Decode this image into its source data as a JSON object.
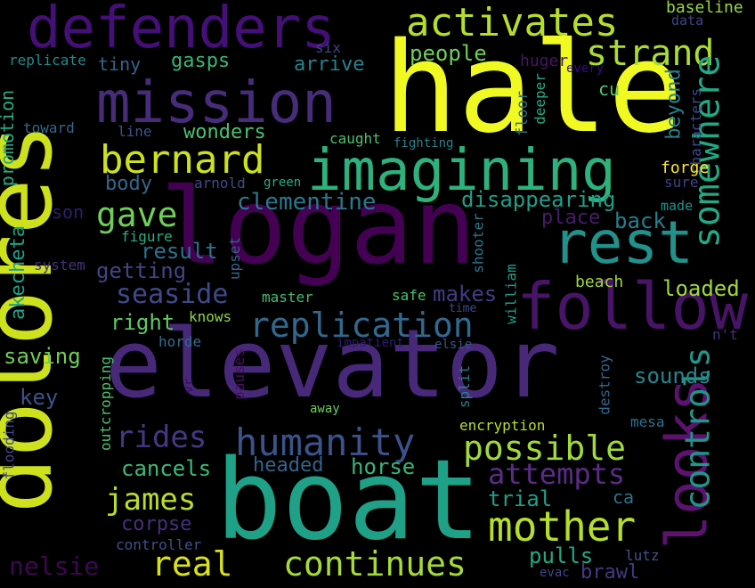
{
  "background": "#000000",
  "words": [
    {
      "text": "logan",
      "color": "#440154"
    },
    {
      "text": "hale",
      "color": "#f0f921"
    },
    {
      "text": "elevator",
      "color": "#482979"
    },
    {
      "text": "boat",
      "color": "#1fa187"
    },
    {
      "text": "dolores",
      "color": "#cde11d"
    },
    {
      "text": "defenders",
      "color": "#440f76"
    },
    {
      "text": "mission",
      "color": "#472c7a"
    },
    {
      "text": "imagining",
      "color": "#2db27d"
    },
    {
      "text": "follow",
      "color": "#481467"
    },
    {
      "text": "rest",
      "color": "#21918c"
    },
    {
      "text": "activates",
      "color": "#b5de2b"
    },
    {
      "text": "strand",
      "color": "#aadc32"
    },
    {
      "text": "somewhere",
      "color": "#22a884"
    },
    {
      "text": "bernard",
      "color": "#cde11d"
    },
    {
      "text": "gave",
      "color": "#6ece58"
    },
    {
      "text": "looks",
      "color": "#5d126f"
    },
    {
      "text": "controls",
      "color": "#1f968b"
    },
    {
      "text": "humanity",
      "color": "#3b528b"
    },
    {
      "text": "replication",
      "color": "#31688e"
    },
    {
      "text": "seaside",
      "color": "#3e4a89"
    },
    {
      "text": "rides",
      "color": "#453781"
    },
    {
      "text": "possible",
      "color": "#a0da39"
    },
    {
      "text": "mother",
      "color": "#b5de2b"
    },
    {
      "text": "real",
      "color": "#d8e219"
    },
    {
      "text": "continues",
      "color": "#a5db36"
    },
    {
      "text": "james",
      "color": "#b8de29"
    },
    {
      "text": "attempts",
      "color": "#5b2c86"
    },
    {
      "text": "nelsie",
      "color": "#3e0751"
    },
    {
      "text": "clementine",
      "color": "#2a788e"
    },
    {
      "text": "disappearing",
      "color": "#1f9e89"
    },
    {
      "text": "people",
      "color": "#6ece58"
    },
    {
      "text": "tiny",
      "color": "#33638d"
    },
    {
      "text": "gasps",
      "color": "#35b779"
    },
    {
      "text": "arrive",
      "color": "#26828e"
    },
    {
      "text": "wonders",
      "color": "#4ac16d"
    },
    {
      "text": "promotion",
      "color": "#25ab82"
    },
    {
      "text": "akecheta",
      "color": "#1fa187"
    },
    {
      "text": "saving",
      "color": "#6ece58"
    },
    {
      "text": "result",
      "color": "#2c728e"
    },
    {
      "text": "getting",
      "color": "#414487"
    },
    {
      "text": "right",
      "color": "#5ec962"
    },
    {
      "text": "body",
      "color": "#31688e"
    },
    {
      "text": "son",
      "color": "#2e1e6e"
    },
    {
      "text": "key",
      "color": "#3b528b"
    },
    {
      "text": "makes",
      "color": "#443a83"
    },
    {
      "text": "place",
      "color": "#481c6e"
    },
    {
      "text": "back",
      "color": "#277f8e"
    },
    {
      "text": "loaded",
      "color": "#9fda3a"
    },
    {
      "text": "sounds",
      "color": "#25858e"
    },
    {
      "text": "cancels",
      "color": "#3bbb75"
    },
    {
      "text": "headed",
      "color": "#33638d"
    },
    {
      "text": "horse",
      "color": "#35b779"
    },
    {
      "text": "corpse",
      "color": "#472f7d"
    },
    {
      "text": "trial",
      "color": "#1f9e89"
    },
    {
      "text": "pulls",
      "color": "#22a884"
    },
    {
      "text": "brawl",
      "color": "#443983"
    },
    {
      "text": "beyond",
      "color": "#277f8e"
    },
    {
      "text": "huger",
      "color": "#481467"
    },
    {
      "text": "baseline",
      "color": "#95d840"
    },
    {
      "text": "data",
      "color": "#414487"
    },
    {
      "text": "every",
      "color": "#3c088d"
    },
    {
      "text": "characters",
      "color": "#3e4989"
    },
    {
      "text": "forge",
      "color": "#fde725"
    },
    {
      "text": "sure",
      "color": "#424086"
    },
    {
      "text": "made",
      "color": "#20928c"
    },
    {
      "text": "six",
      "color": "#414487"
    },
    {
      "text": "replicate",
      "color": "#238a8d"
    },
    {
      "text": "toward",
      "color": "#31688e"
    },
    {
      "text": "line",
      "color": "#3b528b"
    },
    {
      "text": "caught",
      "color": "#4ac16d"
    },
    {
      "text": "fighting",
      "color": "#26828e"
    },
    {
      "text": "floor",
      "color": "#2d708e"
    },
    {
      "text": "deeper",
      "color": "#25ab82"
    },
    {
      "text": "cu",
      "color": "#54c568"
    },
    {
      "text": "arnold",
      "color": "#3e4a89"
    },
    {
      "text": "green",
      "color": "#26ad81"
    },
    {
      "text": "figure",
      "color": "#27ad81"
    },
    {
      "text": "upset",
      "color": "#33638d"
    },
    {
      "text": "system",
      "color": "#46307e"
    },
    {
      "text": "master",
      "color": "#42be71"
    },
    {
      "text": "knows",
      "color": "#8fd744"
    },
    {
      "text": "safe",
      "color": "#4ac16d"
    },
    {
      "text": "time",
      "color": "#3e4989"
    },
    {
      "text": "shooter",
      "color": "#2b758e"
    },
    {
      "text": "william",
      "color": "#1f9e89"
    },
    {
      "text": "beach",
      "color": "#9fda3a"
    },
    {
      "text": "n't",
      "color": "#46307e"
    },
    {
      "text": "horde",
      "color": "#2e6e8e"
    },
    {
      "text": "impatient",
      "color": "#2d1d6c"
    },
    {
      "text": "elsie",
      "color": "#3a548c"
    },
    {
      "text": "vr",
      "color": "#3d0965"
    },
    {
      "text": "pauses",
      "color": "#471063"
    },
    {
      "text": "outcropping",
      "color": "#4ac16d"
    },
    {
      "text": "flooding",
      "color": "#3f4788"
    },
    {
      "text": "away",
      "color": "#6ece58"
    },
    {
      "text": "split",
      "color": "#26828e"
    },
    {
      "text": "destroy",
      "color": "#31688e"
    },
    {
      "text": "encryption",
      "color": "#b5de2b"
    },
    {
      "text": "mesa",
      "color": "#2c728e"
    },
    {
      "text": "ca",
      "color": "#2c728e"
    },
    {
      "text": "controller",
      "color": "#3b528b"
    },
    {
      "text": "lutz",
      "color": "#3b528b"
    },
    {
      "text": "evac",
      "color": "#3f4788"
    }
  ]
}
